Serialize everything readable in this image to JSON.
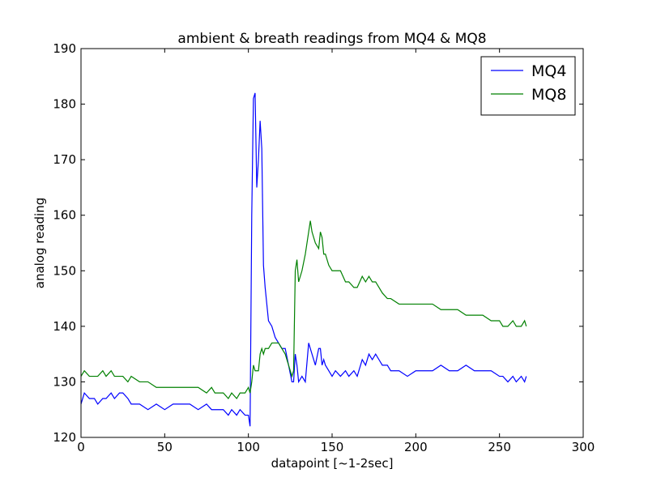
{
  "chart_data": {
    "type": "line",
    "title": "ambient & breath readings from MQ4 & MQ8",
    "x_label": "datapoint [~1-2sec]",
    "y_label": "analog reading",
    "x": [
      0,
      2,
      5,
      8,
      10,
      13,
      15,
      18,
      20,
      23,
      25,
      28,
      30,
      35,
      40,
      45,
      50,
      55,
      60,
      65,
      70,
      75,
      78,
      80,
      85,
      88,
      90,
      93,
      95,
      98,
      100,
      101,
      102,
      103,
      104,
      105,
      106,
      107,
      108,
      109,
      110,
      112,
      114,
      116,
      118,
      120,
      122,
      124,
      126,
      127,
      128,
      129,
      130,
      132,
      134,
      136,
      137,
      138,
      140,
      142,
      143,
      144,
      145,
      146,
      148,
      150,
      152,
      155,
      158,
      160,
      163,
      165,
      168,
      170,
      172,
      174,
      176,
      178,
      180,
      183,
      185,
      190,
      195,
      200,
      205,
      210,
      215,
      220,
      225,
      230,
      235,
      240,
      245,
      250,
      252,
      255,
      258,
      260,
      263,
      265,
      266
    ],
    "series": [
      {
        "name": "MQ4",
        "color": "#0000ff",
        "values": [
          126,
          128,
          127,
          127,
          126,
          127,
          127,
          128,
          127,
          128,
          128,
          127,
          126,
          126,
          125,
          126,
          125,
          126,
          126,
          126,
          125,
          126,
          125,
          125,
          125,
          124,
          125,
          124,
          125,
          124,
          124,
          122,
          160,
          181,
          182,
          165,
          170,
          177,
          172,
          151,
          147,
          141,
          140,
          138,
          137,
          136,
          136,
          133,
          130,
          130,
          135,
          133,
          130,
          131,
          130,
          137,
          136,
          135,
          133,
          136,
          136,
          133,
          134,
          133,
          132,
          131,
          132,
          131,
          132,
          131,
          132,
          131,
          134,
          133,
          135,
          134,
          135,
          134,
          133,
          133,
          132,
          132,
          131,
          132,
          132,
          132,
          133,
          132,
          132,
          133,
          132,
          132,
          132,
          131,
          131,
          130,
          131,
          130,
          131,
          130,
          131
        ]
      },
      {
        "name": "MQ8",
        "color": "#008000",
        "values": [
          131,
          132,
          131,
          131,
          131,
          132,
          131,
          132,
          131,
          131,
          131,
          130,
          131,
          130,
          130,
          129,
          129,
          129,
          129,
          129,
          129,
          128,
          129,
          128,
          128,
          127,
          128,
          127,
          128,
          128,
          129,
          128,
          130,
          133,
          132,
          132,
          132,
          135,
          136,
          135,
          136,
          136,
          137,
          137,
          137,
          136,
          135,
          133,
          131,
          132,
          150,
          152,
          148,
          150,
          153,
          157,
          159,
          157,
          155,
          154,
          157,
          156,
          153,
          153,
          151,
          150,
          150,
          150,
          148,
          148,
          147,
          147,
          149,
          148,
          149,
          148,
          148,
          147,
          146,
          145,
          145,
          144,
          144,
          144,
          144,
          144,
          143,
          143,
          143,
          142,
          142,
          142,
          141,
          141,
          140,
          140,
          141,
          140,
          140,
          141,
          140
        ]
      }
    ],
    "xlim": [
      0,
      300
    ],
    "xticks": [
      0,
      50,
      100,
      150,
      200,
      250,
      300
    ],
    "ylim": [
      120,
      190
    ],
    "yticks": [
      120,
      130,
      140,
      150,
      160,
      170,
      180,
      190
    ],
    "grid": false,
    "legend": "upper right"
  }
}
